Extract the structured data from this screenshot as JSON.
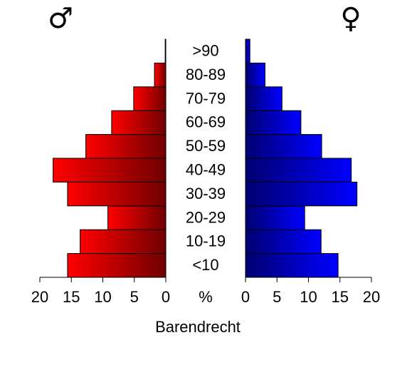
{
  "chart_data": {
    "type": "pyramid",
    "title": "Barendrecht",
    "x_label": "%",
    "categories": [
      "<10",
      "10-19",
      "20-29",
      "30-39",
      "40-49",
      "50-59",
      "60-69",
      "70-79",
      "80-89",
      ">90"
    ],
    "series": [
      {
        "name": "♂",
        "color": "#ff0000",
        "values": [
          15.6,
          13.6,
          9.2,
          15.6,
          17.9,
          12.7,
          8.6,
          5.1,
          1.8,
          0.1
        ]
      },
      {
        "name": "♀",
        "color": "#0000ff",
        "values": [
          14.7,
          12.0,
          9.4,
          17.7,
          16.8,
          12.1,
          8.8,
          5.8,
          3.1,
          0.7
        ]
      }
    ],
    "xlim": [
      0,
      20
    ],
    "xticks": [
      0,
      5,
      10,
      15,
      20
    ]
  }
}
